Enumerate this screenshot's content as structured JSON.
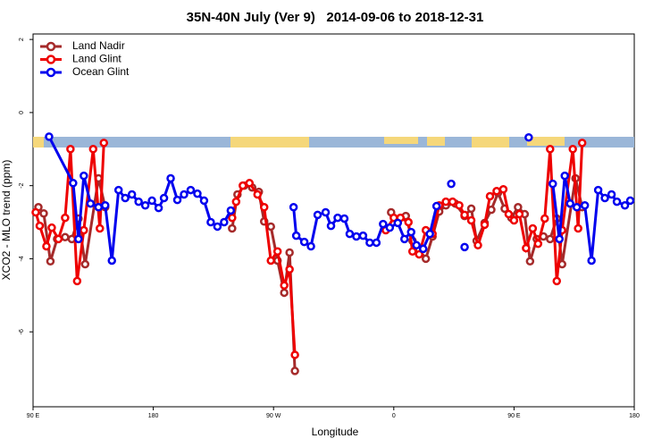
{
  "chart_data": {
    "type": "line",
    "title": "35N-40N July (Ver 9)   2014-09-06 to 2018-12-31",
    "x_label": "Longitude",
    "y_label": "XCO2 - MLO trend (ppm)",
    "xlim": [
      90,
      540
    ],
    "ylim": [
      -8.05,
      2.15
    ],
    "xticks": [
      {
        "value": 90,
        "label": "90 E"
      },
      180,
      {
        "value": 270,
        "label": "90 W"
      },
      {
        "value": 360,
        "label": "0"
      },
      {
        "value": 450,
        "label": "90 E"
      },
      {
        "value": 540,
        "label": "180"
      }
    ],
    "yticks": [
      2,
      0,
      -2,
      -4,
      -6
    ],
    "legend": "top-left",
    "series": [
      {
        "name": "Land Nadir",
        "color": "#a52a2a",
        "x": [
          94,
          98,
          103,
          108,
          114,
          119,
          124,
          129,
          139,
          144,
          null,
          239,
          243,
          248,
          254,
          259,
          263,
          268,
          273,
          278,
          282,
          286,
          null,
          358,
          363,
          369,
          374,
          379,
          384,
          389,
          394,
          399,
          406,
          413,
          418,
          422,
          428,
          433,
          438,
          443,
          448,
          453,
          458,
          462,
          467,
          472,
          477,
          482,
          486,
          496,
          501
        ],
        "values": [
          -2.59,
          -2.76,
          -4.07,
          -3.46,
          -3.41,
          -3.46,
          -2.9,
          -4.15,
          -1.8,
          -2.59,
          null,
          -3.17,
          -2.24,
          -2.0,
          -2.05,
          -2.17,
          -2.98,
          -3.12,
          -4.05,
          -4.93,
          -3.83,
          -7.07,
          null,
          -2.73,
          -2.98,
          -2.83,
          -3.51,
          -3.76,
          -4.0,
          -3.39,
          -2.71,
          -2.54,
          -2.49,
          -2.83,
          -2.63,
          -3.51,
          -3.02,
          -2.66,
          -2.2,
          -2.63,
          -2.88,
          -2.59,
          -2.78,
          -4.07,
          -3.46,
          -3.39,
          -3.46,
          -2.9,
          -4.15,
          -1.8,
          -2.59
        ]
      },
      {
        "name": "Land Glint",
        "color": "#ee0000",
        "x": [
          92,
          95,
          100,
          104,
          109,
          114,
          118,
          123,
          128,
          135,
          140,
          143,
          null,
          239,
          242,
          247,
          252,
          258,
          263,
          268,
          273,
          278,
          282,
          286,
          null,
          354,
          360,
          365,
          371,
          374,
          379,
          384,
          389,
          394,
          399,
          404,
          409,
          413,
          418,
          423,
          428,
          432,
          437,
          442,
          446,
          450,
          454,
          459,
          464,
          468,
          473,
          477,
          482,
          486,
          494,
          498,
          501
        ],
        "values": [
          -2.73,
          -3.1,
          -3.66,
          -3.15,
          -3.46,
          -2.88,
          -1.0,
          -4.61,
          -3.22,
          -1.0,
          -3.17,
          -0.83,
          null,
          -2.88,
          -2.44,
          -2.0,
          -1.93,
          -2.24,
          -2.59,
          -4.05,
          -3.8,
          -4.73,
          -4.29,
          -6.63,
          null,
          -3.22,
          -2.88,
          -2.88,
          -3.0,
          -3.8,
          -3.88,
          -3.22,
          -3.32,
          -2.54,
          -2.44,
          -2.44,
          -2.54,
          -2.8,
          -2.95,
          -3.63,
          -3.07,
          -2.29,
          -2.15,
          -2.1,
          -2.78,
          -2.95,
          -2.78,
          -3.71,
          -3.17,
          -3.59,
          -2.9,
          -1.0,
          -4.61,
          -3.22,
          -1.0,
          -3.17,
          -0.83
        ]
      },
      {
        "name": "Ocean Glint",
        "color": "#0000ee",
        "x": [
          102,
          120,
          124,
          128,
          133,
          139,
          144,
          149,
          154,
          159,
          164,
          169,
          174,
          179,
          184,
          188,
          193,
          198,
          203,
          208,
          213,
          218,
          223,
          228,
          233,
          238,
          null,
          285,
          287,
          293,
          298,
          303,
          309,
          313,
          318,
          323,
          327,
          332,
          337,
          342,
          347,
          352,
          357,
          363,
          368,
          373,
          377,
          382,
          387,
          392,
          null,
          403,
          null,
          413,
          null,
          461,
          null,
          479,
          484,
          488,
          492,
          497,
          503,
          508,
          513,
          518,
          523,
          527,
          533,
          537
        ],
        "values": [
          -0.66,
          -1.93,
          -3.46,
          -1.73,
          -2.49,
          -2.59,
          -2.54,
          -4.05,
          -2.12,
          -2.34,
          -2.24,
          -2.44,
          -2.54,
          -2.41,
          -2.61,
          -2.34,
          -1.8,
          -2.39,
          -2.24,
          -2.12,
          -2.22,
          -2.41,
          -3.0,
          -3.12,
          -3.0,
          -2.68,
          null,
          -2.59,
          -3.37,
          -3.54,
          -3.66,
          -2.8,
          -2.73,
          -3.1,
          -2.88,
          -2.9,
          -3.32,
          -3.39,
          -3.37,
          -3.56,
          -3.56,
          -3.05,
          -3.15,
          -3.02,
          -3.46,
          -3.27,
          -3.63,
          -3.73,
          -3.32,
          -2.56,
          null,
          -1.95,
          null,
          -3.68,
          null,
          -0.68,
          null,
          -1.95,
          -3.46,
          -1.73,
          -2.49,
          -2.59,
          -2.54,
          -4.05,
          -2.12,
          -2.34,
          -2.24,
          -2.44,
          -2.54,
          -2.41
        ]
      }
    ]
  }
}
